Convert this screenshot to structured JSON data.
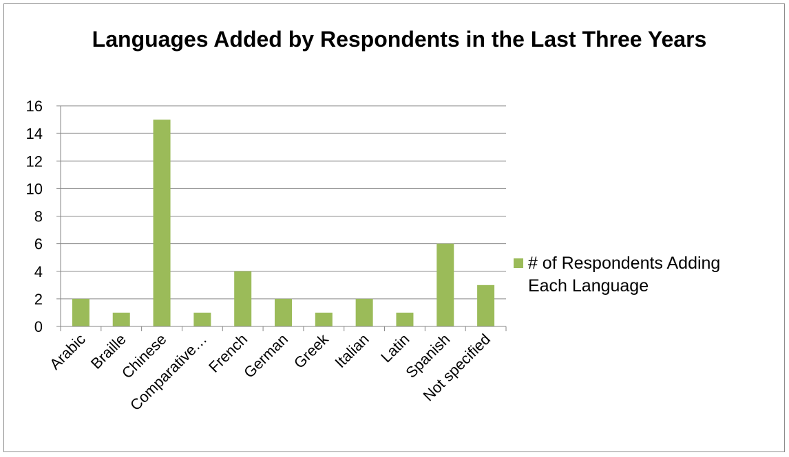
{
  "chart_data": {
    "type": "bar",
    "title": "Languages Added by Respondents in the Last Three Years",
    "categories": [
      "Arabic",
      "Braille",
      "Chinese",
      "Comparative…",
      "French",
      "German",
      "Greek",
      "Italian",
      "Latin",
      "Spanish",
      "Not specified"
    ],
    "series": [
      {
        "name": "# of Respondents Adding Each Language",
        "values": [
          2,
          1,
          15,
          1,
          4,
          2,
          1,
          2,
          1,
          6,
          3
        ],
        "color": "#9bbb59"
      }
    ],
    "ylim": [
      0,
      16
    ],
    "yticks": [
      0,
      2,
      4,
      6,
      8,
      10,
      12,
      14,
      16
    ],
    "grid": true,
    "legend_position": "right",
    "gridline_color": "#868686"
  }
}
